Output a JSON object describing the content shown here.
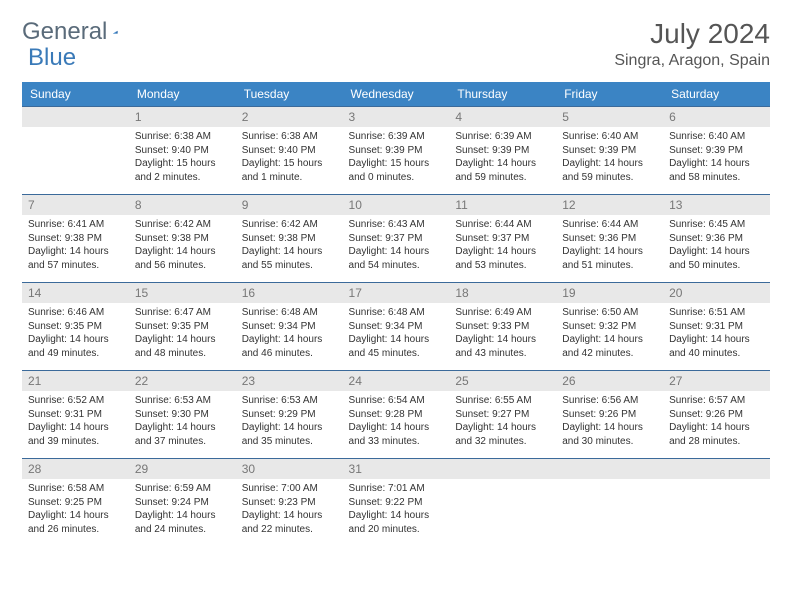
{
  "logo": {
    "text1": "General",
    "text2": "Blue"
  },
  "title": "July 2024",
  "location": "Singra, Aragon, Spain",
  "colors": {
    "header_bg": "#3b84c4",
    "header_text": "#ffffff",
    "daynum_bg": "#e8e8e8",
    "daynum_text": "#777777",
    "border": "#3b6a9a",
    "logo_general": "#5a6b7a",
    "logo_blue": "#3a7ab8"
  },
  "weekdays": [
    "Sunday",
    "Monday",
    "Tuesday",
    "Wednesday",
    "Thursday",
    "Friday",
    "Saturday"
  ],
  "weeks": [
    [
      {
        "blank": true
      },
      {
        "n": "1",
        "sunrise": "6:38 AM",
        "sunset": "9:40 PM",
        "daylight": "15 hours and 2 minutes."
      },
      {
        "n": "2",
        "sunrise": "6:38 AM",
        "sunset": "9:40 PM",
        "daylight": "15 hours and 1 minute."
      },
      {
        "n": "3",
        "sunrise": "6:39 AM",
        "sunset": "9:39 PM",
        "daylight": "15 hours and 0 minutes."
      },
      {
        "n": "4",
        "sunrise": "6:39 AM",
        "sunset": "9:39 PM",
        "daylight": "14 hours and 59 minutes."
      },
      {
        "n": "5",
        "sunrise": "6:40 AM",
        "sunset": "9:39 PM",
        "daylight": "14 hours and 59 minutes."
      },
      {
        "n": "6",
        "sunrise": "6:40 AM",
        "sunset": "9:39 PM",
        "daylight": "14 hours and 58 minutes."
      }
    ],
    [
      {
        "n": "7",
        "sunrise": "6:41 AM",
        "sunset": "9:38 PM",
        "daylight": "14 hours and 57 minutes."
      },
      {
        "n": "8",
        "sunrise": "6:42 AM",
        "sunset": "9:38 PM",
        "daylight": "14 hours and 56 minutes."
      },
      {
        "n": "9",
        "sunrise": "6:42 AM",
        "sunset": "9:38 PM",
        "daylight": "14 hours and 55 minutes."
      },
      {
        "n": "10",
        "sunrise": "6:43 AM",
        "sunset": "9:37 PM",
        "daylight": "14 hours and 54 minutes."
      },
      {
        "n": "11",
        "sunrise": "6:44 AM",
        "sunset": "9:37 PM",
        "daylight": "14 hours and 53 minutes."
      },
      {
        "n": "12",
        "sunrise": "6:44 AM",
        "sunset": "9:36 PM",
        "daylight": "14 hours and 51 minutes."
      },
      {
        "n": "13",
        "sunrise": "6:45 AM",
        "sunset": "9:36 PM",
        "daylight": "14 hours and 50 minutes."
      }
    ],
    [
      {
        "n": "14",
        "sunrise": "6:46 AM",
        "sunset": "9:35 PM",
        "daylight": "14 hours and 49 minutes."
      },
      {
        "n": "15",
        "sunrise": "6:47 AM",
        "sunset": "9:35 PM",
        "daylight": "14 hours and 48 minutes."
      },
      {
        "n": "16",
        "sunrise": "6:48 AM",
        "sunset": "9:34 PM",
        "daylight": "14 hours and 46 minutes."
      },
      {
        "n": "17",
        "sunrise": "6:48 AM",
        "sunset": "9:34 PM",
        "daylight": "14 hours and 45 minutes."
      },
      {
        "n": "18",
        "sunrise": "6:49 AM",
        "sunset": "9:33 PM",
        "daylight": "14 hours and 43 minutes."
      },
      {
        "n": "19",
        "sunrise": "6:50 AM",
        "sunset": "9:32 PM",
        "daylight": "14 hours and 42 minutes."
      },
      {
        "n": "20",
        "sunrise": "6:51 AM",
        "sunset": "9:31 PM",
        "daylight": "14 hours and 40 minutes."
      }
    ],
    [
      {
        "n": "21",
        "sunrise": "6:52 AM",
        "sunset": "9:31 PM",
        "daylight": "14 hours and 39 minutes."
      },
      {
        "n": "22",
        "sunrise": "6:53 AM",
        "sunset": "9:30 PM",
        "daylight": "14 hours and 37 minutes."
      },
      {
        "n": "23",
        "sunrise": "6:53 AM",
        "sunset": "9:29 PM",
        "daylight": "14 hours and 35 minutes."
      },
      {
        "n": "24",
        "sunrise": "6:54 AM",
        "sunset": "9:28 PM",
        "daylight": "14 hours and 33 minutes."
      },
      {
        "n": "25",
        "sunrise": "6:55 AM",
        "sunset": "9:27 PM",
        "daylight": "14 hours and 32 minutes."
      },
      {
        "n": "26",
        "sunrise": "6:56 AM",
        "sunset": "9:26 PM",
        "daylight": "14 hours and 30 minutes."
      },
      {
        "n": "27",
        "sunrise": "6:57 AM",
        "sunset": "9:26 PM",
        "daylight": "14 hours and 28 minutes."
      }
    ],
    [
      {
        "n": "28",
        "sunrise": "6:58 AM",
        "sunset": "9:25 PM",
        "daylight": "14 hours and 26 minutes."
      },
      {
        "n": "29",
        "sunrise": "6:59 AM",
        "sunset": "9:24 PM",
        "daylight": "14 hours and 24 minutes."
      },
      {
        "n": "30",
        "sunrise": "7:00 AM",
        "sunset": "9:23 PM",
        "daylight": "14 hours and 22 minutes."
      },
      {
        "n": "31",
        "sunrise": "7:01 AM",
        "sunset": "9:22 PM",
        "daylight": "14 hours and 20 minutes."
      },
      {
        "blank": true
      },
      {
        "blank": true
      },
      {
        "blank": true
      }
    ]
  ],
  "labels": {
    "sunrise": "Sunrise: ",
    "sunset": "Sunset: ",
    "daylight": "Daylight: "
  }
}
